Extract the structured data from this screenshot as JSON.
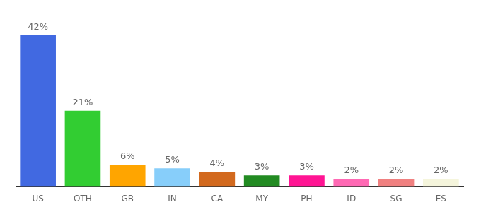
{
  "chart_data": {
    "type": "bar",
    "categories": [
      "US",
      "OTH",
      "GB",
      "IN",
      "CA",
      "MY",
      "PH",
      "ID",
      "SG",
      "ES"
    ],
    "values": [
      42,
      21,
      6,
      5,
      4,
      3,
      3,
      2,
      2,
      2
    ],
    "value_labels": [
      "42%",
      "21%",
      "6%",
      "5%",
      "4%",
      "3%",
      "3%",
      "2%",
      "2%",
      "2%"
    ],
    "colors": [
      "#4169e1",
      "#32cd32",
      "#ffa500",
      "#87cefa",
      "#d2691e",
      "#228b22",
      "#ff1493",
      "#ff69b4",
      "#f08080",
      "#f5f5dc"
    ],
    "ylim": [
      0,
      42
    ],
    "grid": false,
    "data_labels": true,
    "tick_labels": "x"
  }
}
